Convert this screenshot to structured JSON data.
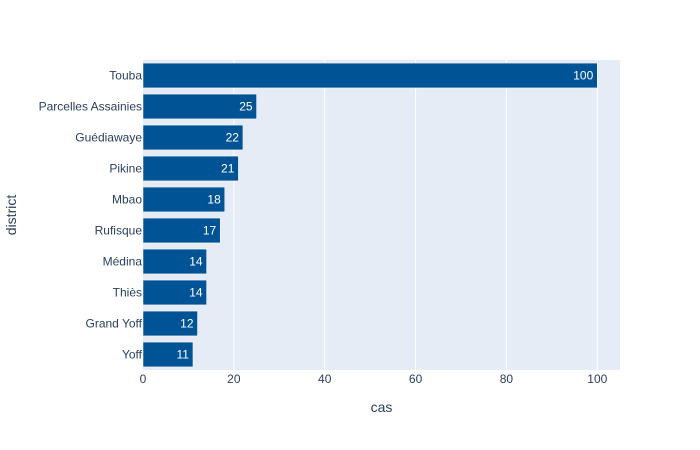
{
  "chart_data": {
    "type": "bar",
    "orientation": "horizontal",
    "title": "",
    "xlabel": "cas",
    "ylabel": "district",
    "xlim": [
      0,
      105
    ],
    "xticks": [
      0,
      20,
      40,
      60,
      80,
      100
    ],
    "grid": true,
    "categories": [
      "Touba",
      "Parcelles Assainies",
      "Guédiawaye",
      "Pikine",
      "Mbao",
      "Rufisque",
      "Médina",
      "Thiès",
      "Grand Yoff",
      "Yoff"
    ],
    "values": [
      100,
      25,
      22,
      21,
      18,
      17,
      14,
      14,
      12,
      11
    ],
    "data_labels": [
      "100",
      "25",
      "22",
      "21",
      "18",
      "17",
      "14",
      "14",
      "12",
      "11"
    ],
    "colors": {
      "bar": "#005495",
      "plot_bg": "#e5ecf6",
      "grid": "#ffffff",
      "text": "#2a3f5f"
    }
  }
}
